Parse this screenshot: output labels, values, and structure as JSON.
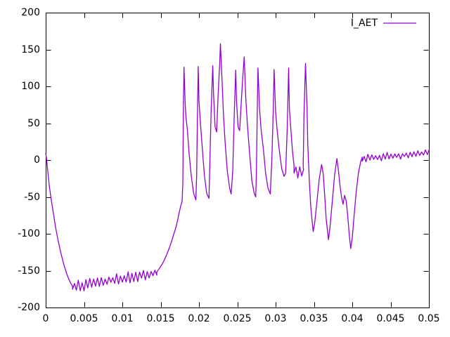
{
  "window": {
    "background": "#ffffff"
  },
  "legend": {
    "label": "I_AET",
    "position": "top-right-inside"
  },
  "chart_data": {
    "type": "line",
    "title": "",
    "xlabel": "",
    "ylabel": "",
    "grid": false,
    "xlim": [
      0,
      0.05
    ],
    "ylim": [
      -200,
      200
    ],
    "legend_position": "top-right-inside",
    "xticks": [
      {
        "v": 0,
        "label": "0"
      },
      {
        "v": 0.005,
        "label": "0.005"
      },
      {
        "v": 0.01,
        "label": "0.01"
      },
      {
        "v": 0.015,
        "label": "0.015"
      },
      {
        "v": 0.02,
        "label": "0.02"
      },
      {
        "v": 0.025,
        "label": "0.025"
      },
      {
        "v": 0.03,
        "label": "0.03"
      },
      {
        "v": 0.035,
        "label": "0.035"
      },
      {
        "v": 0.04,
        "label": "0.04"
      },
      {
        "v": 0.045,
        "label": "0.045"
      },
      {
        "v": 0.05,
        "label": "0.05"
      }
    ],
    "yticks": [
      {
        "v": -200,
        "label": "-200"
      },
      {
        "v": -150,
        "label": "-150"
      },
      {
        "v": -100,
        "label": "-100"
      },
      {
        "v": -50,
        "label": "-50"
      },
      {
        "v": 0,
        "label": "0"
      },
      {
        "v": 50,
        "label": "50"
      },
      {
        "v": 100,
        "label": "100"
      },
      {
        "v": 150,
        "label": "150"
      },
      {
        "v": 200,
        "label": "200"
      }
    ],
    "series": [
      {
        "name": "I_AET",
        "color": "#9400d3",
        "segments": [
          {
            "mode": "line",
            "points": [
              [
                0,
                10
              ],
              [
                0.0001,
                2
              ],
              [
                0.0003,
                -18
              ],
              [
                0.0005,
                -38
              ],
              [
                0.0007,
                -52
              ],
              [
                0.001,
                -72
              ],
              [
                0.0013,
                -92
              ],
              [
                0.0016,
                -108
              ],
              [
                0.002,
                -127
              ],
              [
                0.0024,
                -143
              ],
              [
                0.0028,
                -156
              ],
              [
                0.0032,
                -166
              ],
              [
                0.0035,
                -171
              ]
            ]
          },
          {
            "mode": "noise",
            "x0": 0.0035,
            "x1": 0.0145,
            "y0": -172,
            "y1": -153,
            "amp": 8,
            "step": 0.00025
          },
          {
            "mode": "line",
            "points": [
              [
                0.0145,
                -152
              ],
              [
                0.0149,
                -146
              ],
              [
                0.0152,
                -141
              ],
              [
                0.0155,
                -135
              ],
              [
                0.0158,
                -128
              ],
              [
                0.0161,
                -120
              ],
              [
                0.0164,
                -111
              ],
              [
                0.0167,
                -101
              ],
              [
                0.017,
                -91
              ],
              [
                0.0172,
                -82
              ],
              [
                0.0174,
                -72
              ],
              [
                0.0176,
                -63
              ],
              [
                0.0178,
                -56
              ]
            ]
          },
          {
            "mode": "line",
            "points": [
              [
                0.0179,
                -30
              ],
              [
                0.01795,
                60
              ],
              [
                0.01805,
                126
              ],
              [
                0.0182,
                75
              ],
              [
                0.0183,
                58
              ],
              [
                0.0185,
                40
              ],
              [
                0.0187,
                10
              ],
              [
                0.019,
                -22
              ],
              [
                0.0193,
                -45
              ],
              [
                0.0196,
                -54
              ],
              [
                0.0197,
                -20
              ],
              [
                0.0198,
                60
              ],
              [
                0.0199,
                127
              ],
              [
                0.02,
                80
              ],
              [
                0.0202,
                48
              ],
              [
                0.0204,
                20
              ],
              [
                0.0207,
                -20
              ],
              [
                0.021,
                -45
              ],
              [
                0.0213,
                -52
              ],
              [
                0.0214,
                -10
              ],
              [
                0.0216,
                70
              ],
              [
                0.0218,
                128
              ],
              [
                0.0219,
                90
              ],
              [
                0.0221,
                45
              ],
              [
                0.0223,
                38
              ],
              [
                0.0225,
                90
              ],
              [
                0.0227,
                130
              ],
              [
                0.0228,
                158
              ],
              [
                0.023,
                110
              ],
              [
                0.0232,
                60
              ],
              [
                0.0234,
                25
              ],
              [
                0.0237,
                -15
              ],
              [
                0.024,
                -38
              ],
              [
                0.0242,
                -46
              ],
              [
                0.0244,
                -15
              ],
              [
                0.0246,
                60
              ],
              [
                0.0248,
                122
              ],
              [
                0.0249,
                80
              ],
              [
                0.0251,
                45
              ],
              [
                0.0253,
                40
              ],
              [
                0.0255,
                75
              ],
              [
                0.0257,
                110
              ],
              [
                0.0259,
                140
              ],
              [
                0.0261,
                85
              ],
              [
                0.0263,
                50
              ],
              [
                0.0266,
                10
              ],
              [
                0.0269,
                -28
              ],
              [
                0.0272,
                -45
              ],
              [
                0.0274,
                -50
              ],
              [
                0.0275,
                -15
              ],
              [
                0.0276,
                60
              ],
              [
                0.0277,
                125
              ],
              [
                0.0279,
                70
              ],
              [
                0.0281,
                42
              ],
              [
                0.0284,
                15
              ],
              [
                0.0287,
                -18
              ],
              [
                0.029,
                -38
              ],
              [
                0.0293,
                -46
              ],
              [
                0.0295,
                0
              ],
              [
                0.0297,
                70
              ],
              [
                0.0298,
                123
              ],
              [
                0.03,
                65
              ],
              [
                0.0302,
                40
              ],
              [
                0.0305,
                12
              ],
              [
                0.0308,
                -12
              ],
              [
                0.0311,
                -22
              ],
              [
                0.0313,
                -18
              ],
              [
                0.0315,
                40
              ],
              [
                0.0317,
                125
              ],
              [
                0.0318,
                70
              ],
              [
                0.032,
                40
              ],
              [
                0.0322,
                12
              ],
              [
                0.0324,
                -8
              ]
            ]
          },
          {
            "mode": "noise",
            "x0": 0.0324,
            "x1": 0.0336,
            "y0": -14,
            "y1": -18,
            "amp": 9,
            "step": 0.00025
          },
          {
            "mode": "line",
            "points": [
              [
                0.0336,
                -10
              ],
              [
                0.0337,
                60
              ],
              [
                0.0339,
                131
              ],
              [
                0.0341,
                70
              ],
              [
                0.0342,
                20
              ],
              [
                0.0344,
                -30
              ],
              [
                0.0346,
                -65
              ],
              [
                0.0349,
                -97
              ],
              [
                0.0351,
                -85
              ],
              [
                0.0354,
                -55
              ],
              [
                0.0357,
                -25
              ],
              [
                0.036,
                -6
              ],
              [
                0.0362,
                -18
              ],
              [
                0.0364,
                -48
              ],
              [
                0.0366,
                -80
              ],
              [
                0.0369,
                -108
              ],
              [
                0.0371,
                -90
              ],
              [
                0.0374,
                -55
              ],
              [
                0.0377,
                -20
              ],
              [
                0.038,
                2
              ],
              [
                0.0382,
                -15
              ],
              [
                0.0384,
                -35
              ],
              [
                0.0386,
                -50
              ],
              [
                0.0388,
                -60
              ],
              [
                0.039,
                -48
              ],
              [
                0.0392,
                -55
              ],
              [
                0.0394,
                -75
              ],
              [
                0.0396,
                -100
              ],
              [
                0.0398,
                -120
              ],
              [
                0.04,
                -105
              ],
              [
                0.0402,
                -80
              ],
              [
                0.0405,
                -45
              ],
              [
                0.0408,
                -18
              ],
              [
                0.0411,
                -2
              ],
              [
                0.0413,
                4
              ]
            ]
          },
          {
            "mode": "noise",
            "x0": 0.0413,
            "x1": 0.05,
            "y0": 2,
            "y1": 10,
            "amp": 6,
            "step": 0.00025
          }
        ]
      }
    ]
  }
}
